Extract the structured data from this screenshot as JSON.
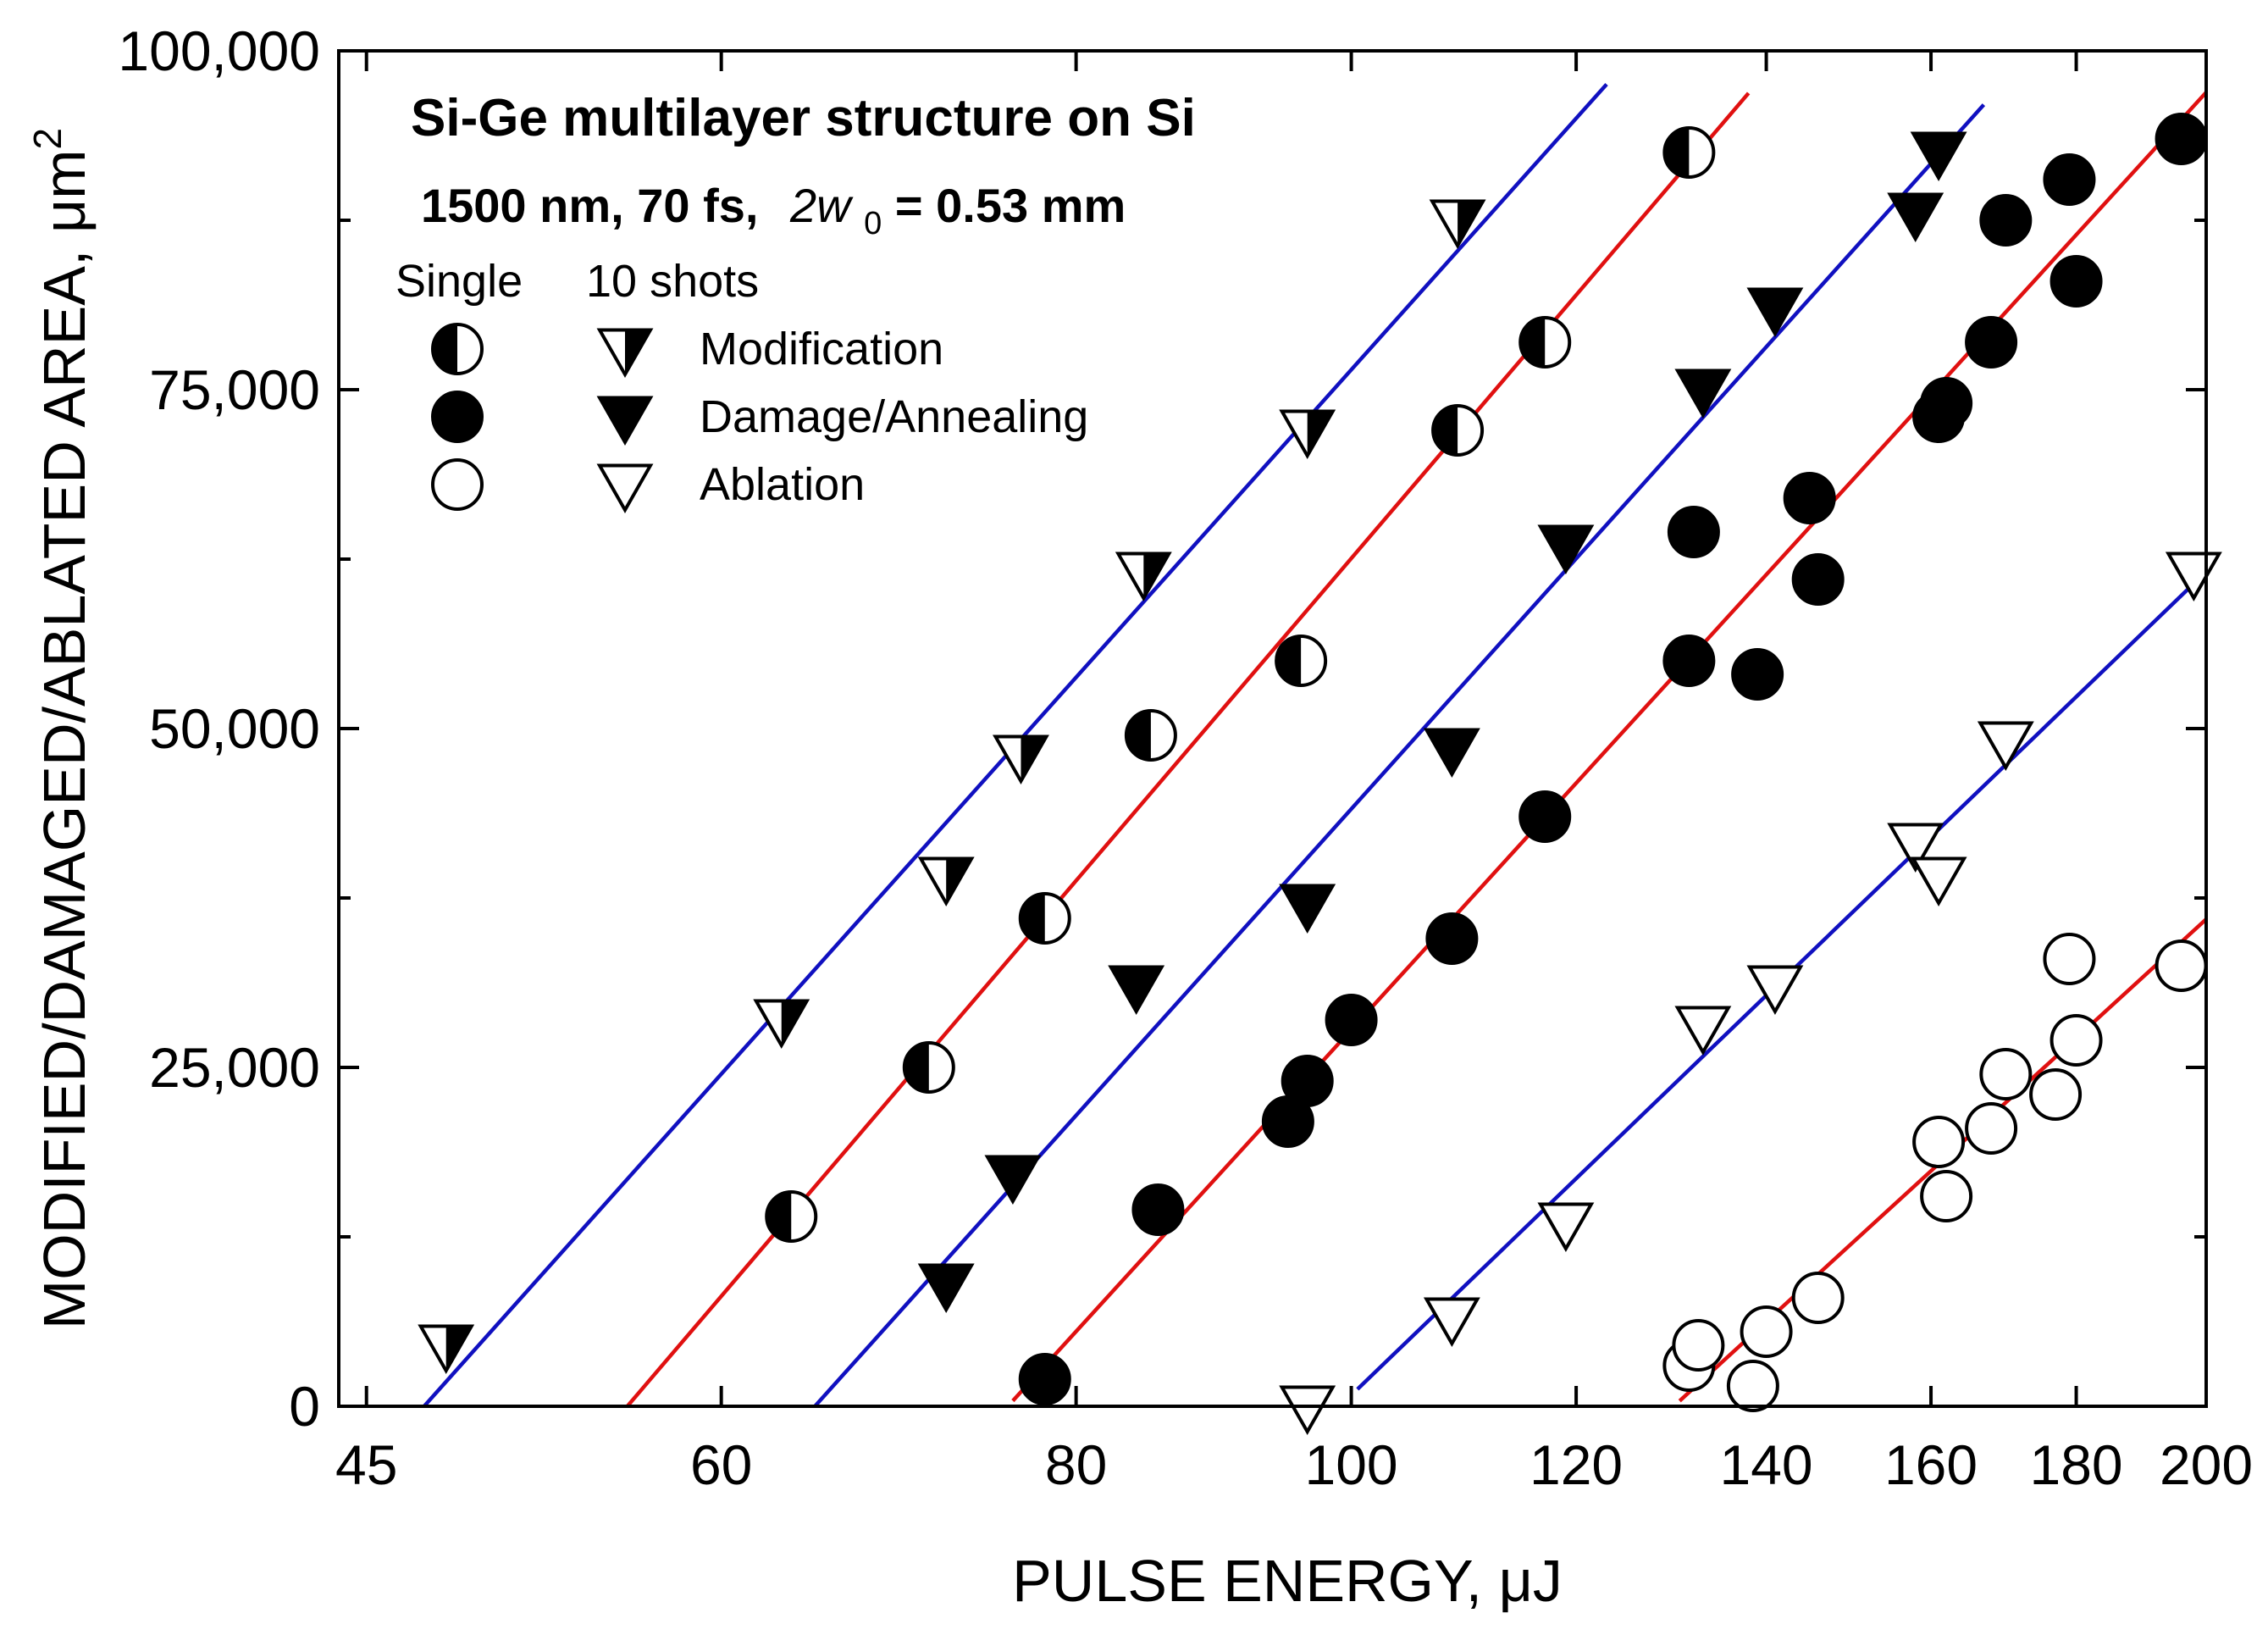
{
  "chart_data": {
    "type": "scatter",
    "title": "Si-Ge multilayer structure on Si",
    "subtitle": {
      "prefix": "1500 nm,  70 fs,",
      "param_italic": "2w",
      "param_sub": "0",
      "suffix": " = 0.53 mm"
    },
    "xlabel": "PULSE ENERGY, μJ",
    "ylabel": "MODIFIED/DAMAGED/ABLATED AREA, μm",
    "ylabel_sup": "2",
    "x_scale": "log",
    "xlim": [
      44,
      200
    ],
    "ylim": [
      0,
      100000
    ],
    "x_ticks": [
      45,
      60,
      80,
      100,
      120,
      140,
      160,
      180,
      200
    ],
    "x_tick_labels": [
      "45",
      "60",
      "80",
      "100",
      "120",
      "140",
      "160",
      "180",
      "200"
    ],
    "y_ticks": [
      0,
      25000,
      50000,
      75000,
      100000
    ],
    "y_tick_labels": [
      "0",
      "25,000",
      "50,000",
      "75,000",
      "100,000"
    ],
    "legend": {
      "position": "top-left",
      "header_single": "Single",
      "header_multi": "10 shots",
      "entries": [
        "Modification",
        "Damage/Annealing",
        "Ablation"
      ]
    },
    "colors": {
      "blue_fit": "#1010c0",
      "red_fit": "#e01010",
      "marker": "#000000"
    },
    "series": [
      {
        "name": "Modification, 10 shots",
        "marker": "triangle-half",
        "fit_color": "#1010c0",
        "fit_x": [
          46.8,
          123
        ],
        "points": [
          [
            48,
            4500
          ],
          [
            63,
            28500
          ],
          [
            72,
            39000
          ],
          [
            76.5,
            48000
          ],
          [
            84.5,
            61500
          ],
          [
            96.5,
            72000
          ],
          [
            109,
            87500
          ]
        ]
      },
      {
        "name": "Modification, single",
        "marker": "circle-half",
        "fit_color": "#e01010",
        "fit_x": [
          53.5,
          138
        ],
        "points": [
          [
            63.5,
            14000
          ],
          [
            71,
            25000
          ],
          [
            78,
            36000
          ],
          [
            85,
            49500
          ],
          [
            96,
            55000
          ],
          [
            109,
            72000
          ],
          [
            117,
            78500
          ],
          [
            131.5,
            92500
          ]
        ]
      },
      {
        "name": "Damage/Annealing, 10 shots",
        "marker": "triangle-filled",
        "fit_color": "#1010c0",
        "fit_x": [
          64.5,
          167
        ],
        "points": [
          [
            72,
            9000
          ],
          [
            76,
            17000
          ],
          [
            84,
            31000
          ],
          [
            96.5,
            37000
          ],
          [
            108.5,
            48500
          ],
          [
            119,
            63500
          ],
          [
            133,
            75000
          ],
          [
            141,
            81000
          ],
          [
            158,
            88000
          ],
          [
            161,
            92500
          ]
        ]
      },
      {
        "name": "Damage/Annealing, single",
        "marker": "circle-filled",
        "fit_color": "#e01010",
        "fit_x": [
          76,
          200
        ],
        "points": [
          [
            78,
            2000
          ],
          [
            85.5,
            14500
          ],
          [
            95,
            21000
          ],
          [
            96.5,
            24000
          ],
          [
            100,
            28500
          ],
          [
            108.5,
            34500
          ],
          [
            117,
            43500
          ],
          [
            131.5,
            55000
          ],
          [
            132,
            64500
          ],
          [
            139,
            54000
          ],
          [
            145,
            67000
          ],
          [
            146,
            61000
          ],
          [
            161,
            73000
          ],
          [
            162,
            74000
          ],
          [
            168,
            78500
          ],
          [
            170,
            87500
          ],
          [
            179,
            90500
          ],
          [
            180,
            83000
          ],
          [
            196,
            93500
          ]
        ]
      },
      {
        "name": "Ablation, 10 shots",
        "marker": "triangle-open",
        "fit_color": "#1010c0",
        "fit_x": [
          100.5,
          198
        ],
        "points": [
          [
            96.5,
            0
          ],
          [
            108.5,
            6500
          ],
          [
            119,
            13500
          ],
          [
            133,
            28000
          ],
          [
            141,
            31000
          ],
          [
            158,
            41500
          ],
          [
            161,
            39000
          ],
          [
            170,
            49000
          ],
          [
            198,
            61500
          ]
        ]
      },
      {
        "name": "Ablation, single",
        "marker": "circle-open",
        "fit_color": "#e01010",
        "fit_x": [
          130.5,
          200
        ],
        "points": [
          [
            131.5,
            3000
          ],
          [
            132.5,
            4500
          ],
          [
            138.5,
            1500
          ],
          [
            140,
            5500
          ],
          [
            146,
            8000
          ],
          [
            161,
            19500
          ],
          [
            162,
            15500
          ],
          [
            168,
            20500
          ],
          [
            170,
            24500
          ],
          [
            177,
            23000
          ],
          [
            179,
            33000
          ],
          [
            180,
            27000
          ],
          [
            196,
            32500
          ]
        ]
      }
    ]
  }
}
